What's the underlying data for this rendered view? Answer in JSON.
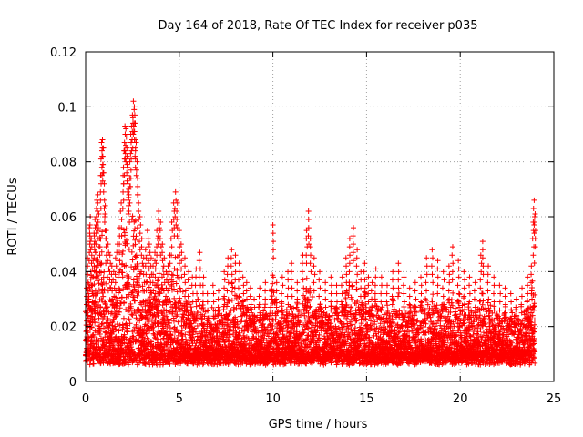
{
  "chart_data": {
    "type": "scatter",
    "title": "Day 164 of 2018, Rate Of TEC Index for receiver p035",
    "xlabel": "GPS time / hours",
    "ylabel": "ROTI / TECUs",
    "xlim": [
      0,
      25
    ],
    "ylim": [
      0,
      0.12
    ],
    "xticks": [
      0,
      5,
      10,
      15,
      20,
      25
    ],
    "xtick_labels": [
      "0",
      "5",
      "10",
      "15",
      "20",
      "25"
    ],
    "yticks": [
      0,
      0.02,
      0.04,
      0.06,
      0.08,
      0.1,
      0.12
    ],
    "ytick_labels": [
      "0",
      "0.02",
      "0.04",
      "0.06",
      "0.08",
      "0.1",
      "0.12"
    ],
    "grid": true,
    "marker": "+",
    "series": [
      {
        "name": "ROTI",
        "color": "#ff0000",
        "points": [
          [
            0.05,
            0.034
          ],
          [
            0.1,
            0.045
          ],
          [
            0.15,
            0.032
          ],
          [
            0.2,
            0.056
          ],
          [
            0.25,
            0.06
          ],
          [
            0.3,
            0.052
          ],
          [
            0.35,
            0.038
          ],
          [
            0.4,
            0.044
          ],
          [
            0.45,
            0.054
          ],
          [
            0.5,
            0.059
          ],
          [
            0.55,
            0.05
          ],
          [
            0.6,
            0.066
          ],
          [
            0.65,
            0.068
          ],
          [
            0.7,
            0.061
          ],
          [
            0.75,
            0.052
          ],
          [
            0.8,
            0.075
          ],
          [
            0.85,
            0.087
          ],
          [
            0.9,
            0.088
          ],
          [
            0.95,
            0.085
          ],
          [
            1.0,
            0.072
          ],
          [
            1.05,
            0.064
          ],
          [
            1.1,
            0.055
          ],
          [
            1.2,
            0.05
          ],
          [
            1.3,
            0.046
          ],
          [
            1.4,
            0.042
          ],
          [
            1.5,
            0.04
          ],
          [
            1.6,
            0.045
          ],
          [
            1.7,
            0.05
          ],
          [
            1.8,
            0.056
          ],
          [
            1.9,
            0.065
          ],
          [
            2.0,
            0.075
          ],
          [
            2.05,
            0.084
          ],
          [
            2.1,
            0.093
          ],
          [
            2.15,
            0.092
          ],
          [
            2.2,
            0.085
          ],
          [
            2.25,
            0.078
          ],
          [
            2.3,
            0.07
          ],
          [
            2.35,
            0.074
          ],
          [
            2.4,
            0.083
          ],
          [
            2.45,
            0.093
          ],
          [
            2.5,
            0.097
          ],
          [
            2.55,
            0.102
          ],
          [
            2.6,
            0.1
          ],
          [
            2.65,
            0.094
          ],
          [
            2.7,
            0.087
          ],
          [
            2.75,
            0.08
          ],
          [
            2.8,
            0.068
          ],
          [
            2.9,
            0.06
          ],
          [
            3.0,
            0.052
          ],
          [
            3.1,
            0.045
          ],
          [
            3.2,
            0.048
          ],
          [
            3.3,
            0.055
          ],
          [
            3.4,
            0.05
          ],
          [
            3.5,
            0.045
          ],
          [
            3.6,
            0.042
          ],
          [
            3.7,
            0.047
          ],
          [
            3.8,
            0.055
          ],
          [
            3.9,
            0.062
          ],
          [
            4.0,
            0.058
          ],
          [
            4.1,
            0.05
          ],
          [
            4.2,
            0.045
          ],
          [
            4.3,
            0.04
          ],
          [
            4.4,
            0.042
          ],
          [
            4.5,
            0.046
          ],
          [
            4.6,
            0.058
          ],
          [
            4.7,
            0.065
          ],
          [
            4.8,
            0.069
          ],
          [
            4.9,
            0.065
          ],
          [
            5.0,
            0.055
          ],
          [
            5.1,
            0.05
          ],
          [
            5.3,
            0.045
          ],
          [
            5.5,
            0.04
          ],
          [
            5.7,
            0.038
          ],
          [
            5.9,
            0.041
          ],
          [
            6.1,
            0.047
          ],
          [
            6.3,
            0.038
          ],
          [
            6.5,
            0.032
          ],
          [
            6.8,
            0.035
          ],
          [
            7.1,
            0.033
          ],
          [
            7.4,
            0.04
          ],
          [
            7.6,
            0.045
          ],
          [
            7.8,
            0.048
          ],
          [
            8.0,
            0.046
          ],
          [
            8.2,
            0.043
          ],
          [
            8.4,
            0.038
          ],
          [
            8.6,
            0.036
          ],
          [
            8.8,
            0.034
          ],
          [
            9.0,
            0.03
          ],
          [
            9.3,
            0.034
          ],
          [
            9.6,
            0.036
          ],
          [
            9.9,
            0.033
          ],
          [
            10.0,
            0.057
          ],
          [
            10.2,
            0.036
          ],
          [
            10.5,
            0.038
          ],
          [
            10.8,
            0.04
          ],
          [
            11.0,
            0.043
          ],
          [
            11.3,
            0.036
          ],
          [
            11.6,
            0.046
          ],
          [
            11.8,
            0.055
          ],
          [
            11.9,
            0.062
          ],
          [
            12.0,
            0.052
          ],
          [
            12.2,
            0.045
          ],
          [
            12.5,
            0.04
          ],
          [
            12.8,
            0.036
          ],
          [
            13.1,
            0.038
          ],
          [
            13.4,
            0.035
          ],
          [
            13.7,
            0.038
          ],
          [
            13.9,
            0.045
          ],
          [
            14.1,
            0.052
          ],
          [
            14.3,
            0.056
          ],
          [
            14.5,
            0.048
          ],
          [
            14.7,
            0.04
          ],
          [
            14.9,
            0.043
          ],
          [
            15.1,
            0.038
          ],
          [
            15.3,
            0.036
          ],
          [
            15.5,
            0.041
          ],
          [
            15.8,
            0.038
          ],
          [
            16.1,
            0.035
          ],
          [
            16.4,
            0.04
          ],
          [
            16.7,
            0.043
          ],
          [
            17.0,
            0.038
          ],
          [
            17.3,
            0.034
          ],
          [
            17.6,
            0.036
          ],
          [
            17.9,
            0.038
          ],
          [
            18.2,
            0.045
          ],
          [
            18.5,
            0.048
          ],
          [
            18.8,
            0.044
          ],
          [
            19.1,
            0.04
          ],
          [
            19.4,
            0.042
          ],
          [
            19.6,
            0.049
          ],
          [
            19.9,
            0.044
          ],
          [
            20.2,
            0.04
          ],
          [
            20.5,
            0.038
          ],
          [
            20.8,
            0.036
          ],
          [
            21.1,
            0.046
          ],
          [
            21.2,
            0.051
          ],
          [
            21.5,
            0.042
          ],
          [
            21.8,
            0.038
          ],
          [
            22.1,
            0.035
          ],
          [
            22.4,
            0.034
          ],
          [
            22.7,
            0.032
          ],
          [
            23.0,
            0.03
          ],
          [
            23.3,
            0.034
          ],
          [
            23.6,
            0.038
          ],
          [
            23.8,
            0.042
          ],
          [
            23.9,
            0.058
          ],
          [
            23.95,
            0.066
          ],
          [
            24.0,
            0.061
          ]
        ]
      }
    ]
  }
}
